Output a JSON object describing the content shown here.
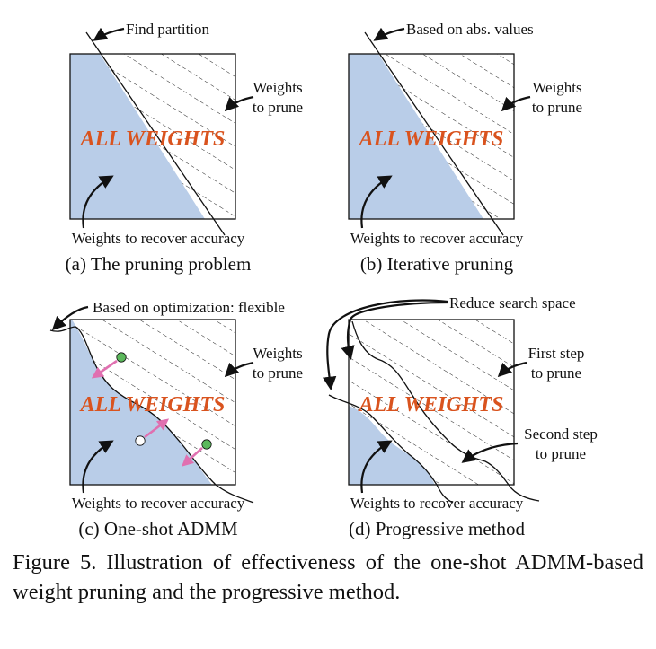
{
  "panel_a": {
    "callout_top": "Find partition",
    "callout_right_1": "Weights",
    "callout_right_2": "to prune",
    "center_text": "ALL WEIGHTS",
    "callout_bottom": "Weights to recover accuracy",
    "subcaption": "(a) The pruning problem"
  },
  "panel_b": {
    "callout_top": "Based on abs. values",
    "callout_right_1": "Weights",
    "callout_right_2": "to prune",
    "center_text": "ALL WEIGHTS",
    "callout_bottom": "Weights to recover accuracy",
    "subcaption": "(b) Iterative pruning"
  },
  "panel_c": {
    "callout_top": "Based on optimization: flexible",
    "callout_right_1": "Weights",
    "callout_right_2": "to prune",
    "center_text": "ALL WEIGHTS",
    "callout_bottom": "Weights to recover accuracy",
    "subcaption": "(c) One-shot ADMM"
  },
  "panel_d": {
    "callout_top": "Reduce search space",
    "callout_right_1": "First step",
    "callout_right_2": "to prune",
    "callout_right_3": "Second step",
    "callout_right_4": "to prune",
    "center_text": "ALL WEIGHTS",
    "callout_bottom": "Weights to recover accuracy",
    "subcaption": "(d) Progressive method"
  },
  "caption": "Figure 5. Illustration of effectiveness of the one-shot ADMM-based weight pruning and the progressive method.",
  "colors": {
    "fill_blue": "#b9cde8",
    "accent_orange": "#d9531e",
    "arrow_pink": "#e070b0",
    "dot_green": "#5cb85c",
    "ink": "#111111"
  }
}
